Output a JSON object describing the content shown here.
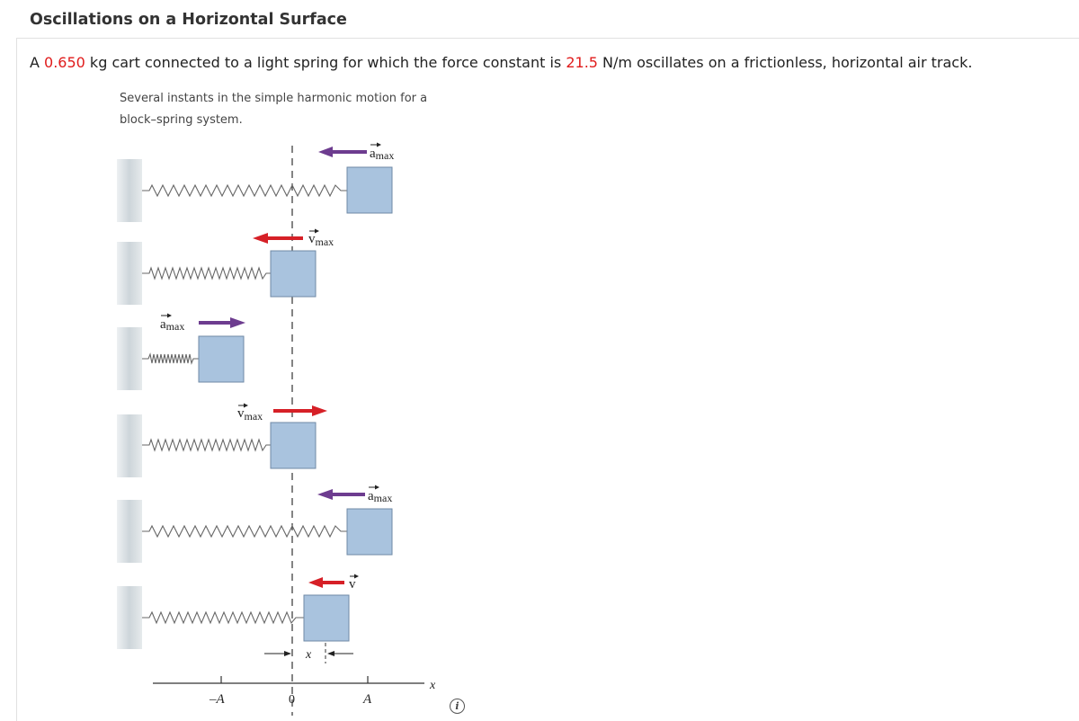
{
  "title": "Oscillations on a Horizontal Surface",
  "problem": {
    "pre": "A ",
    "mass": "0.650",
    "mid": " kg cart connected to a light spring for which the force constant is ",
    "k": "21.5",
    "post": " N/m oscillates on a frictionless, horizontal air track."
  },
  "figure": {
    "caption_line1": "Several instants in the simple harmonic motion for a",
    "caption_line2": "block–spring system.",
    "labels": {
      "a_max": "a",
      "v_max": "v",
      "v": "v",
      "sub_max": "max",
      "x": "x",
      "neg_A": "–A",
      "zero": "0",
      "A": "A",
      "axis_x": "x"
    },
    "colors": {
      "velocity": "#d62027",
      "acceleration": "#6d3c8f",
      "block": "#a9c3de",
      "wall": "#d5dbdf"
    }
  },
  "icons": {
    "info": "i"
  }
}
